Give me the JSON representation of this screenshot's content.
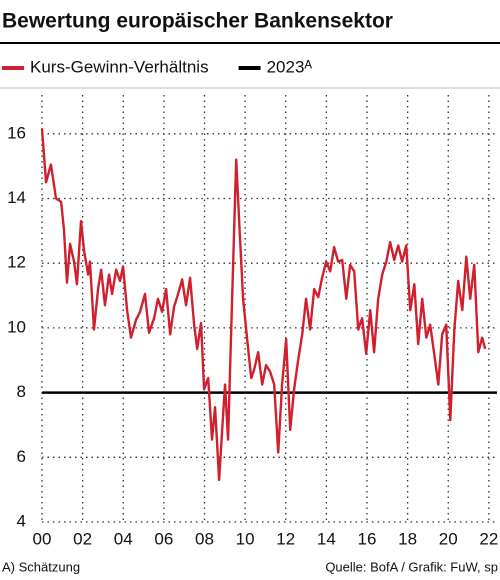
{
  "chart_data": {
    "type": "line",
    "title": "Bewertung europäischer Bankensektor",
    "footnote": "A) Schätzung",
    "source": "Quelle: BofA / Grafik: FuW, sp",
    "x": [
      2000.0,
      2000.2,
      2000.44,
      2000.69,
      2000.94,
      2001.08,
      2001.23,
      2001.38,
      2001.58,
      2001.72,
      2001.92,
      2002.07,
      2002.27,
      2002.36,
      2002.56,
      2002.76,
      2002.91,
      2003.1,
      2003.3,
      2003.45,
      2003.65,
      2003.84,
      2003.99,
      2004.19,
      2004.38,
      2004.63,
      2004.83,
      2005.07,
      2005.27,
      2005.52,
      2005.71,
      2005.91,
      2006.11,
      2006.31,
      2006.5,
      2006.7,
      2006.9,
      2007.09,
      2007.29,
      2007.49,
      2007.64,
      2007.83,
      2007.98,
      2008.18,
      2008.37,
      2008.52,
      2008.72,
      2008.87,
      2009.01,
      2009.16,
      2009.36,
      2009.56,
      2009.75,
      2009.9,
      2010.1,
      2010.3,
      2010.44,
      2010.64,
      2010.84,
      2011.03,
      2011.23,
      2011.43,
      2011.63,
      2011.82,
      2012.02,
      2012.22,
      2012.41,
      2012.61,
      2012.81,
      2013.0,
      2013.2,
      2013.4,
      2013.6,
      2013.79,
      2013.99,
      2014.19,
      2014.38,
      2014.58,
      2014.78,
      2014.98,
      2015.17,
      2015.37,
      2015.57,
      2015.76,
      2015.96,
      2016.16,
      2016.35,
      2016.55,
      2016.75,
      2016.95,
      2017.14,
      2017.34,
      2017.54,
      2017.73,
      2017.93,
      2018.13,
      2018.33,
      2018.52,
      2018.72,
      2018.92,
      2019.11,
      2019.31,
      2019.51,
      2019.7,
      2019.9,
      2020.1,
      2020.3,
      2020.49,
      2020.69,
      2020.89,
      2021.08,
      2021.28,
      2021.48,
      2021.67,
      2021.82
    ],
    "series": [
      {
        "name": "Kurs-Gewinn-Verhältnis",
        "color": "#d0202e",
        "values": [
          16.15,
          14.5,
          15.05,
          14.0,
          13.9,
          13.05,
          11.4,
          12.6,
          12.05,
          11.35,
          13.3,
          12.4,
          11.65,
          12.05,
          9.95,
          11.2,
          11.8,
          10.7,
          11.65,
          11.05,
          11.8,
          11.45,
          11.9,
          10.55,
          9.7,
          10.25,
          10.5,
          11.05,
          9.85,
          10.3,
          10.9,
          10.5,
          11.2,
          9.8,
          10.65,
          11.05,
          11.5,
          10.7,
          11.55,
          10.1,
          9.35,
          10.15,
          8.1,
          8.45,
          6.55,
          7.55,
          5.3,
          6.85,
          8.25,
          6.55,
          10.9,
          15.2,
          12.75,
          10.9,
          9.65,
          8.45,
          8.7,
          9.25,
          8.25,
          8.85,
          8.65,
          8.25,
          6.15,
          8.25,
          9.65,
          6.85,
          8.1,
          9.0,
          9.8,
          10.9,
          9.95,
          11.2,
          10.95,
          11.55,
          12.05,
          11.75,
          12.5,
          12.05,
          12.1,
          10.9,
          11.95,
          11.75,
          9.95,
          10.3,
          9.2,
          10.55,
          9.25,
          10.9,
          11.65,
          12.05,
          12.65,
          12.1,
          12.55,
          12.05,
          12.55,
          10.55,
          11.35,
          9.5,
          10.9,
          9.7,
          10.1,
          9.2,
          8.25,
          9.8,
          10.1,
          7.15,
          9.95,
          11.45,
          10.55,
          12.2,
          10.9,
          11.95,
          9.25,
          9.7,
          9.35
        ]
      }
    ],
    "reference_line": {
      "name": "2023ᴬ",
      "value": 8,
      "color": "#000000"
    },
    "xlim": [
      2000,
      2022.4
    ],
    "xticks": [
      {
        "value": 2000,
        "label": "00"
      },
      {
        "value": 2002,
        "label": "02"
      },
      {
        "value": 2004,
        "label": "04"
      },
      {
        "value": 2006,
        "label": "06"
      },
      {
        "value": 2008,
        "label": "08"
      },
      {
        "value": 2010,
        "label": "10"
      },
      {
        "value": 2012,
        "label": "12"
      },
      {
        "value": 2014,
        "label": "14"
      },
      {
        "value": 2016,
        "label": "16"
      },
      {
        "value": 2018,
        "label": "18"
      },
      {
        "value": 2020,
        "label": "20"
      },
      {
        "value": 2022,
        "label": "22"
      }
    ],
    "ylim": [
      4,
      17.2
    ],
    "yticks": [
      4,
      6,
      8,
      10,
      12,
      14,
      16
    ],
    "grid": true
  }
}
